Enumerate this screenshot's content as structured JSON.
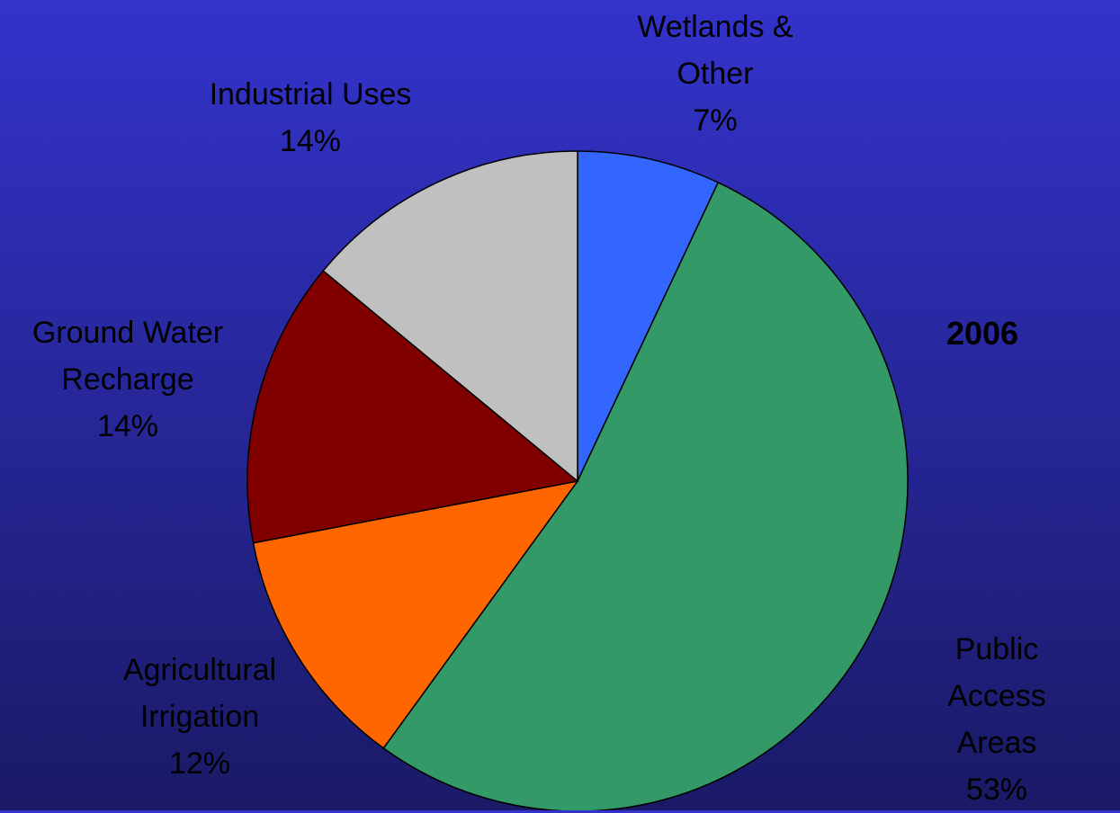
{
  "chart_data": {
    "type": "pie",
    "title": "2006",
    "categories": [
      "Wetlands &\nOther",
      "Public Access\nAreas",
      "Agricultural\nIrrigation",
      "Ground Water\nRecharge",
      "Industrial Uses"
    ],
    "values": [
      7,
      53,
      12,
      14,
      14
    ],
    "value_labels": [
      "7%",
      "53%",
      "12%",
      "14%",
      "14%"
    ],
    "colors": [
      "#3366ff",
      "#339966",
      "#ff6600",
      "#800000",
      "#c0c0c0"
    ]
  }
}
